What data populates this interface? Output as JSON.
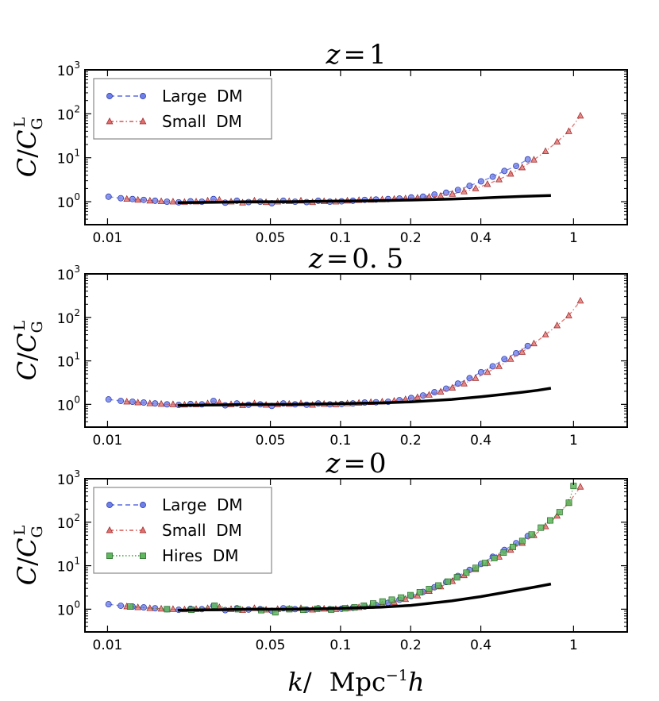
{
  "chart_data": [
    {
      "type": "line",
      "title": "z = 1",
      "title_parts": {
        "var": "z",
        "eq": "=",
        "value": "1"
      },
      "ylabel": "C/C_G^L",
      "xscale": "log",
      "yscale": "log",
      "xlim": [
        0.008,
        1.7
      ],
      "ylim": [
        0.3,
        1000
      ],
      "xticks": [
        0.01,
        0.05,
        0.1,
        0.2,
        0.4,
        1
      ],
      "xtick_labels": [
        "0.01",
        "0.05",
        "0.1",
        "0.2",
        "0.4",
        "1"
      ],
      "yticks": [
        1,
        10,
        100,
        1000
      ],
      "legend_position": "top-left",
      "series": [
        {
          "name": "Large  DM",
          "style": "dashed",
          "marker": "circle",
          "color": "#5b6be0",
          "fill": "#6f7fe8",
          "x": [
            0.0101,
            0.0114,
            0.0128,
            0.0143,
            0.016,
            0.018,
            0.0202,
            0.0227,
            0.0254,
            0.0285,
            0.032,
            0.0359,
            0.0403,
            0.0452,
            0.0507,
            0.0568,
            0.0638,
            0.0715,
            0.0802,
            0.09,
            0.101,
            0.113,
            0.127,
            0.142,
            0.16,
            0.179,
            0.201,
            0.226,
            0.253,
            0.284,
            0.319,
            0.358,
            0.401,
            0.45,
            0.505,
            0.567,
            0.636
          ],
          "y": [
            1.3,
            1.2,
            1.15,
            1.1,
            1.05,
            1.0,
            0.97,
            1.02,
            1.0,
            1.15,
            0.95,
            1.05,
            0.98,
            1.0,
            0.92,
            1.05,
            1.0,
            0.98,
            1.05,
            1.0,
            1.02,
            1.05,
            1.1,
            1.12,
            1.15,
            1.18,
            1.25,
            1.3,
            1.45,
            1.6,
            1.85,
            2.3,
            2.9,
            3.7,
            5.0,
            6.5,
            9.2
          ]
        },
        {
          "name": "Small  DM",
          "style": "dashdot",
          "marker": "triangle",
          "color": "#d9534f",
          "fill": "#e07070",
          "x": [
            0.0121,
            0.0135,
            0.0152,
            0.017,
            0.0191,
            0.0214,
            0.024,
            0.0269,
            0.0302,
            0.0339,
            0.038,
            0.0427,
            0.0479,
            0.0537,
            0.0602,
            0.0676,
            0.0758,
            0.085,
            0.0954,
            0.107,
            0.12,
            0.135,
            0.151,
            0.17,
            0.19,
            0.214,
            0.24,
            0.269,
            0.302,
            0.339,
            0.38,
            0.427,
            0.479,
            0.537,
            0.602,
            0.676,
            0.758,
            0.85,
            0.954,
            1.07
          ],
          "y": [
            1.15,
            1.1,
            1.05,
            1.02,
            1.0,
            0.98,
            1.0,
            1.05,
            1.1,
            1.0,
            0.95,
            1.05,
            0.97,
            1.0,
            1.02,
            1.05,
            0.97,
            1.02,
            1.0,
            1.05,
            1.08,
            1.1,
            1.12,
            1.15,
            1.18,
            1.22,
            1.28,
            1.35,
            1.5,
            1.7,
            2.0,
            2.5,
            3.2,
            4.3,
            6.0,
            9.0,
            14,
            23,
            40,
            90
          ]
        },
        {
          "name": "",
          "style": "solid-thick",
          "marker": "none",
          "color": "#000000",
          "x": [
            0.02,
            0.03,
            0.04,
            0.06,
            0.08,
            0.1,
            0.15,
            0.2,
            0.3,
            0.4,
            0.5,
            0.6,
            0.7,
            0.8
          ],
          "y": [
            0.95,
            0.97,
            1.0,
            1.0,
            1.02,
            1.03,
            1.06,
            1.09,
            1.15,
            1.21,
            1.27,
            1.32,
            1.36,
            1.38
          ]
        }
      ]
    },
    {
      "type": "line",
      "title": "z = 0. 5",
      "title_parts": {
        "var": "z",
        "eq": "=",
        "value": "0. 5"
      },
      "ylabel": "C/C_G^L",
      "xscale": "log",
      "yscale": "log",
      "xlim": [
        0.008,
        1.7
      ],
      "ylim": [
        0.3,
        1000
      ],
      "xticks": [
        0.01,
        0.05,
        0.1,
        0.2,
        0.4,
        1
      ],
      "xtick_labels": [
        "0.01",
        "0.05",
        "0.1",
        "0.2",
        "0.4",
        "1"
      ],
      "yticks": [
        1,
        10,
        100,
        1000
      ],
      "legend_position": "none",
      "series": [
        {
          "name": "Large  DM",
          "style": "dashed",
          "marker": "circle",
          "color": "#5b6be0",
          "fill": "#6f7fe8",
          "x": [
            0.0101,
            0.0114,
            0.0128,
            0.0143,
            0.016,
            0.018,
            0.0202,
            0.0227,
            0.0254,
            0.0285,
            0.032,
            0.0359,
            0.0403,
            0.0452,
            0.0507,
            0.0568,
            0.0638,
            0.0715,
            0.0802,
            0.09,
            0.101,
            0.113,
            0.127,
            0.142,
            0.16,
            0.179,
            0.201,
            0.226,
            0.253,
            0.284,
            0.319,
            0.358,
            0.401,
            0.45,
            0.505,
            0.567,
            0.636
          ],
          "y": [
            1.3,
            1.2,
            1.15,
            1.1,
            1.05,
            1.0,
            0.97,
            1.02,
            1.0,
            1.2,
            0.95,
            1.05,
            0.98,
            1.0,
            0.92,
            1.05,
            1.0,
            0.98,
            1.05,
            1.0,
            1.02,
            1.05,
            1.1,
            1.12,
            1.15,
            1.25,
            1.4,
            1.6,
            1.9,
            2.3,
            3.0,
            4.0,
            5.5,
            7.5,
            11,
            15,
            22
          ]
        },
        {
          "name": "Small  DM",
          "style": "dashdot",
          "marker": "triangle",
          "color": "#d9534f",
          "fill": "#e07070",
          "x": [
            0.0121,
            0.0135,
            0.0152,
            0.017,
            0.0191,
            0.0214,
            0.024,
            0.0269,
            0.0302,
            0.0339,
            0.038,
            0.0427,
            0.0479,
            0.0537,
            0.0602,
            0.0676,
            0.0758,
            0.085,
            0.0954,
            0.107,
            0.12,
            0.135,
            0.151,
            0.17,
            0.19,
            0.214,
            0.24,
            0.269,
            0.302,
            0.339,
            0.38,
            0.427,
            0.479,
            0.537,
            0.602,
            0.676,
            0.758,
            0.85,
            0.954,
            1.07
          ],
          "y": [
            1.15,
            1.1,
            1.05,
            1.02,
            1.0,
            0.98,
            1.0,
            1.05,
            1.1,
            1.0,
            0.95,
            1.05,
            0.97,
            1.0,
            1.02,
            1.05,
            0.97,
            1.02,
            1.0,
            1.05,
            1.08,
            1.12,
            1.15,
            1.2,
            1.3,
            1.45,
            1.65,
            1.95,
            2.4,
            3.0,
            4.0,
            5.5,
            7.5,
            11,
            16,
            25,
            40,
            65,
            110,
            240
          ]
        },
        {
          "name": "",
          "style": "solid-thick",
          "marker": "none",
          "color": "#000000",
          "x": [
            0.02,
            0.03,
            0.04,
            0.06,
            0.08,
            0.1,
            0.15,
            0.2,
            0.3,
            0.4,
            0.5,
            0.6,
            0.7,
            0.8
          ],
          "y": [
            0.95,
            0.97,
            1.0,
            1.0,
            1.02,
            1.04,
            1.08,
            1.14,
            1.3,
            1.5,
            1.7,
            1.9,
            2.1,
            2.35
          ]
        }
      ]
    },
    {
      "type": "line",
      "title": "z = 0",
      "title_parts": {
        "var": "z",
        "eq": "=",
        "value": "0"
      },
      "ylabel": "C/C_G^L",
      "xscale": "log",
      "yscale": "log",
      "xlim": [
        0.008,
        1.7
      ],
      "ylim": [
        0.3,
        1000
      ],
      "xticks": [
        0.01,
        0.05,
        0.1,
        0.2,
        0.4,
        1
      ],
      "xtick_labels": [
        "0.01",
        "0.05",
        "0.1",
        "0.2",
        "0.4",
        "1"
      ],
      "yticks": [
        1,
        10,
        100,
        1000
      ],
      "xlabel": "k/ Mpc^-1 h",
      "legend_position": "top-left",
      "series": [
        {
          "name": "Large  DM",
          "style": "dashed",
          "marker": "circle",
          "color": "#5b6be0",
          "fill": "#6f7fe8",
          "x": [
            0.0101,
            0.0114,
            0.0128,
            0.0143,
            0.016,
            0.018,
            0.0202,
            0.0227,
            0.0254,
            0.0285,
            0.032,
            0.0359,
            0.0403,
            0.0452,
            0.0507,
            0.0568,
            0.0638,
            0.0715,
            0.0802,
            0.09,
            0.101,
            0.113,
            0.127,
            0.142,
            0.16,
            0.179,
            0.201,
            0.226,
            0.253,
            0.284,
            0.319,
            0.358,
            0.401,
            0.45,
            0.505,
            0.567,
            0.636
          ],
          "y": [
            1.3,
            1.2,
            1.15,
            1.1,
            1.05,
            1.0,
            0.97,
            1.02,
            1.0,
            1.2,
            0.95,
            1.05,
            0.98,
            1.0,
            0.92,
            1.05,
            1.0,
            0.98,
            1.05,
            1.0,
            1.02,
            1.08,
            1.15,
            1.25,
            1.4,
            1.65,
            2.0,
            2.5,
            3.2,
            4.2,
            5.8,
            8.0,
            11,
            16,
            23,
            33,
            48
          ]
        },
        {
          "name": "Small  DM",
          "style": "dashdot",
          "marker": "triangle",
          "color": "#d9534f",
          "fill": "#e07070",
          "x": [
            0.0121,
            0.0135,
            0.0152,
            0.017,
            0.0191,
            0.0214,
            0.024,
            0.0269,
            0.0302,
            0.0339,
            0.038,
            0.0427,
            0.0479,
            0.0537,
            0.0602,
            0.0676,
            0.0758,
            0.085,
            0.0954,
            0.107,
            0.12,
            0.135,
            0.151,
            0.17,
            0.19,
            0.214,
            0.24,
            0.269,
            0.302,
            0.339,
            0.38,
            0.427,
            0.479,
            0.537,
            0.602,
            0.676,
            0.758,
            0.85,
            0.954,
            1.07
          ],
          "y": [
            1.15,
            1.1,
            1.05,
            1.02,
            1.0,
            0.98,
            1.0,
            1.05,
            1.1,
            1.0,
            0.95,
            1.05,
            0.97,
            1.0,
            1.02,
            1.05,
            0.97,
            1.02,
            1.0,
            1.05,
            1.1,
            1.18,
            1.28,
            1.45,
            1.7,
            2.05,
            2.6,
            3.3,
            4.4,
            6.0,
            8.3,
            11.5,
            16,
            23,
            33,
            50,
            80,
            140,
            280,
            650
          ]
        },
        {
          "name": "Hires  DM",
          "style": "dotted",
          "marker": "square",
          "color": "#3b9a3b",
          "fill": "#5fb85f",
          "x": [
            0.0125,
            0.018,
            0.0229,
            0.0288,
            0.0363,
            0.0457,
            0.0525,
            0.0603,
            0.0692,
            0.0794,
            0.0912,
            0.1047,
            0.1148,
            0.1259,
            0.138,
            0.1514,
            0.166,
            0.182,
            0.1995,
            0.2188,
            0.2399,
            0.263,
            0.2884,
            0.3162,
            0.3467,
            0.3802,
            0.4169,
            0.4571,
            0.5012,
            0.5495,
            0.6026,
            0.6607,
            0.7244,
            0.7943,
            0.871,
            0.955,
            1.0
          ],
          "y": [
            1.15,
            1.0,
            0.97,
            1.2,
            1.0,
            0.95,
            0.85,
            1.0,
            0.97,
            1.02,
            0.98,
            1.05,
            1.1,
            1.2,
            1.35,
            1.5,
            1.65,
            1.85,
            2.1,
            2.45,
            2.9,
            3.5,
            4.3,
            5.4,
            6.9,
            8.9,
            11.5,
            15,
            20,
            27,
            37,
            52,
            75,
            110,
            170,
            280,
            680
          ]
        },
        {
          "name": "",
          "style": "solid-thick",
          "marker": "none",
          "color": "#000000",
          "x": [
            0.02,
            0.03,
            0.04,
            0.06,
            0.08,
            0.1,
            0.15,
            0.2,
            0.3,
            0.4,
            0.5,
            0.6,
            0.7,
            0.8
          ],
          "y": [
            0.95,
            0.97,
            1.0,
            1.0,
            1.02,
            1.05,
            1.12,
            1.22,
            1.55,
            1.95,
            2.4,
            2.85,
            3.3,
            3.8
          ]
        }
      ]
    }
  ],
  "axis_texts": {
    "y_base": "10",
    "y_exponents": [
      "0",
      "1",
      "2",
      "3"
    ],
    "ylabel_C": "C",
    "ylabel_slash": "/",
    "ylabel_CG": "C",
    "ylabel_sub": "G",
    "ylabel_sup": "L",
    "xlabel_k": "k",
    "xlabel_slash": "/",
    "xlabel_unit": "Mpc",
    "xlabel_exp": "−1",
    "xlabel_h": "h"
  }
}
